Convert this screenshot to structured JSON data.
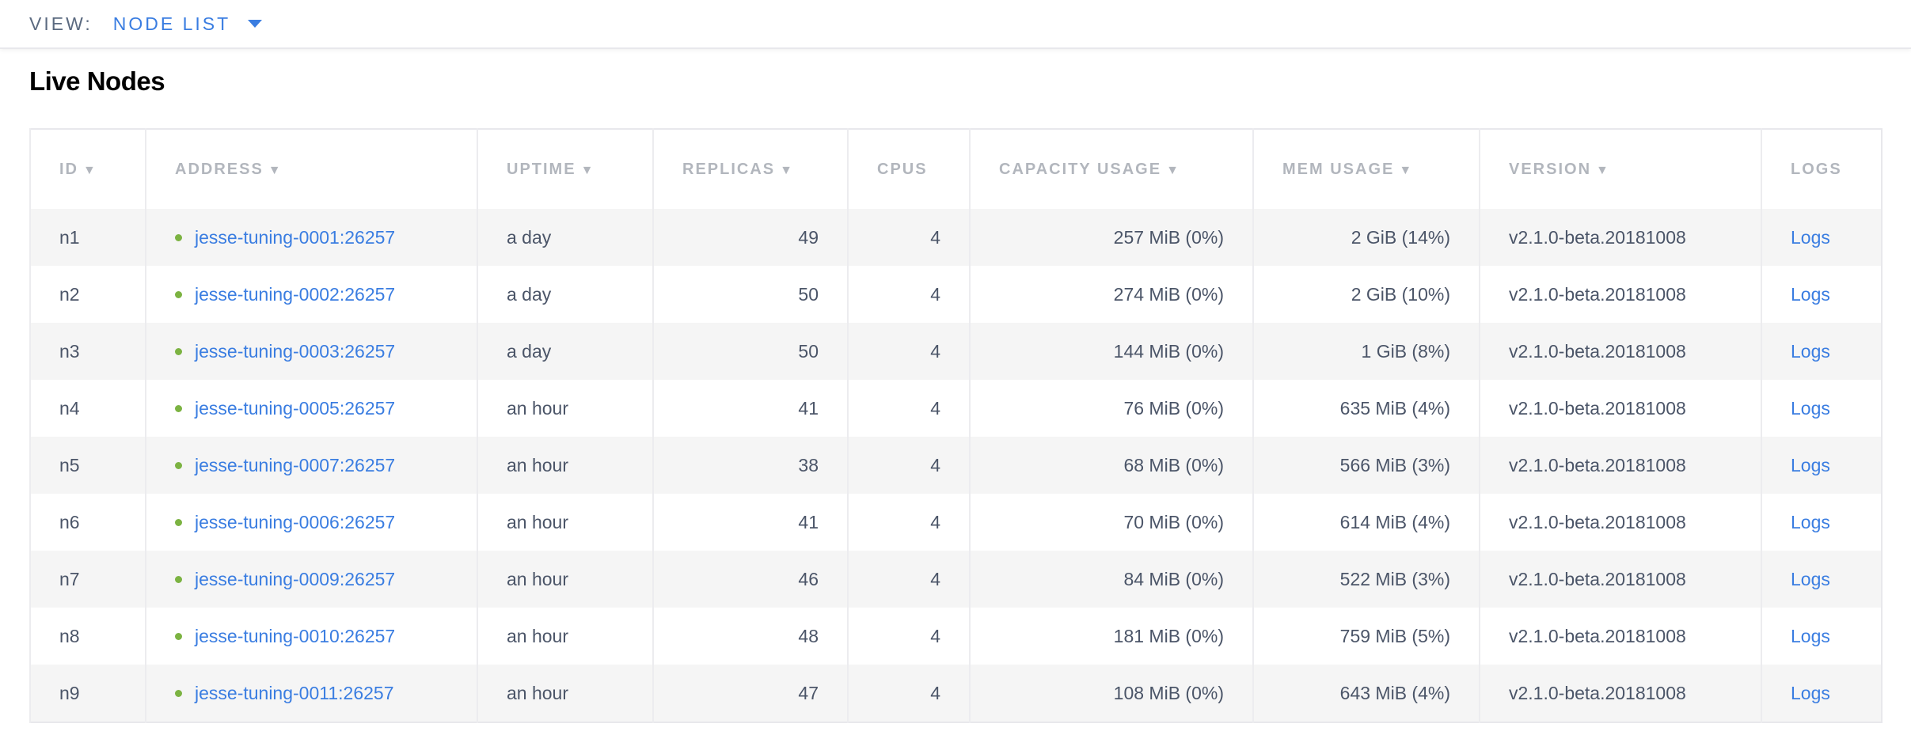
{
  "topbar": {
    "view_label": "VIEW:",
    "view_value": "NODE LIST"
  },
  "title": "Live Nodes",
  "columns": [
    {
      "label": "ID",
      "sortable": true
    },
    {
      "label": "ADDRESS",
      "sortable": true
    },
    {
      "label": "UPTIME",
      "sortable": true
    },
    {
      "label": "REPLICAS",
      "sortable": true
    },
    {
      "label": "CPUS",
      "sortable": false
    },
    {
      "label": "CAPACITY USAGE",
      "sortable": true
    },
    {
      "label": "MEM USAGE",
      "sortable": true
    },
    {
      "label": "VERSION",
      "sortable": true
    },
    {
      "label": "LOGS",
      "sortable": false
    }
  ],
  "rows": [
    {
      "id": "n1",
      "address": "jesse-tuning-0001:26257",
      "uptime": "a day",
      "replicas": "49",
      "cpus": "4",
      "capacity": "257 MiB (0%)",
      "mem": "2 GiB (14%)",
      "version": "v2.1.0-beta.20181008",
      "logs": "Logs"
    },
    {
      "id": "n2",
      "address": "jesse-tuning-0002:26257",
      "uptime": "a day",
      "replicas": "50",
      "cpus": "4",
      "capacity": "274 MiB (0%)",
      "mem": "2 GiB (10%)",
      "version": "v2.1.0-beta.20181008",
      "logs": "Logs"
    },
    {
      "id": "n3",
      "address": "jesse-tuning-0003:26257",
      "uptime": "a day",
      "replicas": "50",
      "cpus": "4",
      "capacity": "144 MiB (0%)",
      "mem": "1 GiB (8%)",
      "version": "v2.1.0-beta.20181008",
      "logs": "Logs"
    },
    {
      "id": "n4",
      "address": "jesse-tuning-0005:26257",
      "uptime": "an hour",
      "replicas": "41",
      "cpus": "4",
      "capacity": "76 MiB (0%)",
      "mem": "635 MiB (4%)",
      "version": "v2.1.0-beta.20181008",
      "logs": "Logs"
    },
    {
      "id": "n5",
      "address": "jesse-tuning-0007:26257",
      "uptime": "an hour",
      "replicas": "38",
      "cpus": "4",
      "capacity": "68 MiB (0%)",
      "mem": "566 MiB (3%)",
      "version": "v2.1.0-beta.20181008",
      "logs": "Logs"
    },
    {
      "id": "n6",
      "address": "jesse-tuning-0006:26257",
      "uptime": "an hour",
      "replicas": "41",
      "cpus": "4",
      "capacity": "70 MiB (0%)",
      "mem": "614 MiB (4%)",
      "version": "v2.1.0-beta.20181008",
      "logs": "Logs"
    },
    {
      "id": "n7",
      "address": "jesse-tuning-0009:26257",
      "uptime": "an hour",
      "replicas": "46",
      "cpus": "4",
      "capacity": "84 MiB (0%)",
      "mem": "522 MiB (3%)",
      "version": "v2.1.0-beta.20181008",
      "logs": "Logs"
    },
    {
      "id": "n8",
      "address": "jesse-tuning-0010:26257",
      "uptime": "an hour",
      "replicas": "48",
      "cpus": "4",
      "capacity": "181 MiB (0%)",
      "mem": "759 MiB (5%)",
      "version": "v2.1.0-beta.20181008",
      "logs": "Logs"
    },
    {
      "id": "n9",
      "address": "jesse-tuning-0011:26257",
      "uptime": "an hour",
      "replicas": "47",
      "cpus": "4",
      "capacity": "108 MiB (0%)",
      "mem": "643 MiB (4%)",
      "version": "v2.1.0-beta.20181008",
      "logs": "Logs"
    }
  ],
  "colors": {
    "accent": "#3a7de1",
    "status_live": "#7cb342",
    "row_stripe": "#f5f5f5"
  },
  "icons": {
    "sort": "sort-down-icon",
    "dropdown": "caret-down-icon",
    "status": "status-dot-icon"
  }
}
